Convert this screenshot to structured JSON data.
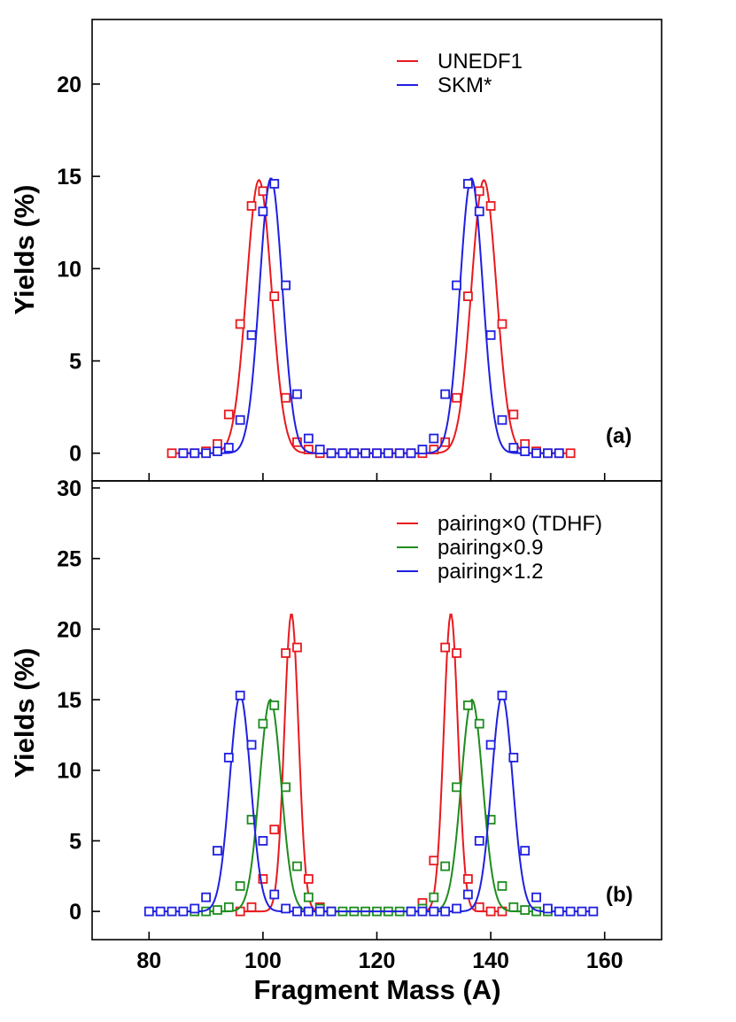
{
  "chart_data": [
    {
      "type": "line",
      "panel_label": "(a)",
      "ylabel": "Yields (%)",
      "xlabel": "",
      "xlim": [
        70,
        170
      ],
      "ylim": [
        -1.5,
        23.5
      ],
      "yticks": [
        0,
        5,
        10,
        15,
        20
      ],
      "ytick_labels": [
        "0",
        "5",
        "10",
        "15",
        "20"
      ],
      "xticks": [
        80,
        100,
        120,
        140,
        160
      ],
      "legend_position": "top-right",
      "series": [
        {
          "name": "UNEDF1",
          "color": "#e8191f",
          "curve_peaks": [
            {
              "center": 99.3,
              "height": 14.8,
              "sigma": 2.2
            },
            {
              "center": 138.8,
              "height": 14.8,
              "sigma": 2.2
            }
          ],
          "x": [
            84,
            86,
            88,
            90,
            92,
            94,
            96,
            98,
            100,
            102,
            104,
            106,
            108,
            110,
            112,
            114,
            116,
            118,
            120,
            122,
            124,
            126,
            128,
            130,
            132,
            134,
            136,
            138,
            140,
            142,
            144,
            146,
            148,
            150,
            152,
            154
          ],
          "values": [
            0,
            0,
            0,
            0.1,
            0.5,
            2.1,
            7.0,
            13.4,
            14.2,
            8.5,
            3.0,
            0.6,
            0.2,
            0,
            0,
            0,
            0,
            0,
            0,
            0,
            0,
            0,
            0,
            0.2,
            0.6,
            3.0,
            8.5,
            14.2,
            13.4,
            7.0,
            2.1,
            0.5,
            0.1,
            0,
            0,
            0
          ]
        },
        {
          "name": "SKM*",
          "color": "#1f1fe0",
          "curve_peaks": [
            {
              "center": 101.4,
              "height": 14.9,
              "sigma": 2.0
            },
            {
              "center": 136.6,
              "height": 14.9,
              "sigma": 2.0
            }
          ],
          "x": [
            86,
            88,
            90,
            92,
            94,
            96,
            98,
            100,
            102,
            104,
            106,
            108,
            110,
            112,
            114,
            116,
            118,
            120,
            122,
            124,
            126,
            128,
            130,
            132,
            134,
            136,
            138,
            140,
            142,
            144,
            146,
            148,
            150,
            152
          ],
          "values": [
            0,
            0,
            0,
            0.1,
            0.3,
            1.8,
            6.4,
            13.1,
            14.6,
            9.1,
            3.2,
            0.8,
            0.2,
            0,
            0,
            0,
            0,
            0,
            0,
            0,
            0,
            0.2,
            0.8,
            3.2,
            9.1,
            14.6,
            13.1,
            6.4,
            1.8,
            0.3,
            0.1,
            0,
            0,
            0
          ]
        }
      ]
    },
    {
      "type": "line",
      "panel_label": "(b)",
      "ylabel": "Yields (%)",
      "xlabel": "Fragment Mass (A)",
      "xlim": [
        70,
        170
      ],
      "ylim": [
        -2,
        30.5
      ],
      "yticks": [
        0,
        5,
        10,
        15,
        20,
        25,
        30
      ],
      "ytick_labels": [
        "0",
        "5",
        "10",
        "15",
        "20",
        "25",
        "30"
      ],
      "xticks": [
        80,
        100,
        120,
        140,
        160
      ],
      "xtick_labels": [
        "80",
        "100",
        "120",
        "140",
        "160"
      ],
      "legend_position": "top-right",
      "series": [
        {
          "name": "pairing×0 (TDHF)",
          "color": "#e8191f",
          "curve_peaks": [
            {
              "center": 105.0,
              "height": 21.1,
              "sigma": 1.25
            },
            {
              "center": 133.0,
              "height": 21.1,
              "sigma": 1.25
            }
          ],
          "x": [
            96,
            98,
            100,
            102,
            104,
            106,
            108,
            110,
            128,
            130,
            132,
            134,
            136,
            138,
            140,
            142
          ],
          "values": [
            0,
            0.3,
            2.3,
            5.8,
            18.3,
            18.7,
            2.3,
            0.3,
            0.6,
            3.6,
            18.7,
            18.3,
            2.3,
            0.3,
            0,
            0
          ]
        },
        {
          "name": "pairing×0.9",
          "color": "#1e8c1e",
          "curve_peaks": [
            {
              "center": 101.3,
              "height": 15.0,
              "sigma": 1.9
            },
            {
              "center": 136.7,
              "height": 15.0,
              "sigma": 1.9
            }
          ],
          "x": [
            88,
            90,
            92,
            94,
            96,
            98,
            100,
            102,
            104,
            106,
            108,
            110,
            112,
            114,
            116,
            118,
            120,
            122,
            124,
            126,
            128,
            130,
            132,
            134,
            136,
            138,
            140,
            142,
            144,
            146,
            148,
            150
          ],
          "values": [
            0,
            0,
            0.1,
            0.3,
            1.8,
            6.5,
            13.3,
            14.6,
            8.8,
            3.2,
            1.0,
            0.2,
            0,
            0,
            0,
            0,
            0,
            0,
            0,
            0,
            0.2,
            1.0,
            3.2,
            8.8,
            14.6,
            13.3,
            6.5,
            1.8,
            0.3,
            0.1,
            0,
            0
          ]
        },
        {
          "name": "pairing×1.2",
          "color": "#1f1fe0",
          "curve_peaks": [
            {
              "center": 96.0,
              "height": 15.3,
              "sigma": 1.85
            },
            {
              "center": 142.0,
              "height": 15.3,
              "sigma": 1.85
            }
          ],
          "x": [
            80,
            82,
            84,
            86,
            88,
            90,
            92,
            94,
            96,
            98,
            100,
            102,
            104,
            106,
            108,
            110,
            112,
            126,
            128,
            130,
            132,
            134,
            136,
            138,
            140,
            142,
            144,
            146,
            148,
            150,
            152,
            154,
            156,
            158
          ],
          "values": [
            0,
            0,
            0,
            0,
            0.2,
            1.0,
            4.3,
            10.9,
            15.3,
            11.8,
            5.0,
            1.2,
            0.2,
            0,
            0,
            0,
            0,
            0,
            0,
            0,
            0,
            0.2,
            1.2,
            5.0,
            11.8,
            15.3,
            10.9,
            4.3,
            1.0,
            0.2,
            0,
            0,
            0,
            0
          ]
        }
      ]
    }
  ]
}
